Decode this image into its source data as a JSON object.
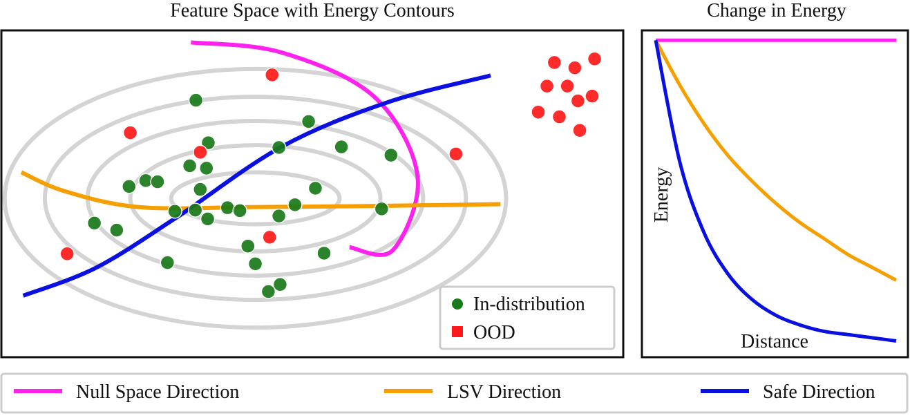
{
  "colors": {
    "in_distribution": "#1a7a1a",
    "ood": "#ff1a1a",
    "null_space": "#ff22ee",
    "lsv": "#f5a000",
    "safe": "#0a10e0",
    "contour": "#d4d4d4",
    "frame": "#111111"
  },
  "legend": {
    "in_distribution": "In-distribution",
    "ood": "OOD",
    "null_space": "Null Space Direction",
    "lsv": "LSV Direction",
    "safe": "Safe Direction"
  },
  "chart_data": [
    {
      "type": "scatter",
      "title": "Feature Space with Energy Contours",
      "xlabel": "",
      "ylabel": "",
      "xlim": [
        0,
        10
      ],
      "ylim": [
        0,
        5.5
      ],
      "grid": false,
      "legend_position": "bottom-right",
      "contours": {
        "center": [
          4.08,
          2.68
        ],
        "semi_axes": [
          [
            1.36,
            0.44
          ],
          [
            2.02,
            0.9
          ],
          [
            2.71,
            1.31
          ],
          [
            3.4,
            1.72
          ],
          [
            4.05,
            2.19
          ]
        ]
      },
      "series": [
        {
          "name": "In-distribution",
          "marker": "circle",
          "points": [
            [
              3.12,
              4.34
            ],
            [
              4.94,
              3.98
            ],
            [
              3.32,
              3.62
            ],
            [
              4.46,
              3.54
            ],
            [
              5.47,
              3.55
            ],
            [
              6.27,
              3.41
            ],
            [
              3.02,
              3.23
            ],
            [
              3.29,
              3.19
            ],
            [
              2.31,
              2.98
            ],
            [
              2.5,
              2.96
            ],
            [
              2.04,
              2.88
            ],
            [
              3.19,
              2.83
            ],
            [
              5.05,
              2.85
            ],
            [
              4.72,
              2.57
            ],
            [
              6.12,
              2.5
            ],
            [
              2.78,
              2.46
            ],
            [
              3.11,
              2.48
            ],
            [
              3.63,
              2.52
            ],
            [
              3.83,
              2.47
            ],
            [
              3.31,
              2.33
            ],
            [
              4.46,
              2.38
            ],
            [
              1.48,
              2.26
            ],
            [
              1.84,
              2.14
            ],
            [
              3.96,
              1.87
            ],
            [
              5.19,
              1.75
            ],
            [
              2.66,
              1.59
            ],
            [
              4.08,
              1.57
            ],
            [
              4.48,
              1.22
            ],
            [
              4.29,
              1.1
            ]
          ]
        },
        {
          "name": "OOD",
          "marker": "circle",
          "points": [
            [
              4.35,
              4.77
            ],
            [
              2.06,
              3.79
            ],
            [
              3.19,
              3.46
            ],
            [
              7.32,
              3.43
            ],
            [
              4.31,
              2.02
            ],
            [
              1.04,
              1.74
            ],
            [
              8.91,
              4.98
            ],
            [
              9.56,
              5.04
            ],
            [
              9.24,
              4.89
            ],
            [
              8.79,
              4.58
            ],
            [
              9.12,
              4.58
            ],
            [
              9.52,
              4.41
            ],
            [
              9.29,
              4.33
            ],
            [
              8.65,
              4.14
            ],
            [
              8.99,
              4.06
            ],
            [
              9.32,
              3.83
            ]
          ]
        }
      ],
      "directions": [
        {
          "name": "Null Space Direction",
          "points": [
            [
              3.04,
              5.32
            ],
            [
              4.5,
              5.15
            ],
            [
              6.0,
              4.4
            ],
            [
              6.7,
              3.05
            ],
            [
              6.3,
              1.8
            ],
            [
              5.6,
              1.85
            ]
          ]
        },
        {
          "name": "LSV Direction",
          "points": [
            [
              0.3,
              3.12
            ],
            [
              1.0,
              2.8
            ],
            [
              2.2,
              2.53
            ],
            [
              4.0,
              2.53
            ],
            [
              6.0,
              2.55
            ],
            [
              8.04,
              2.58
            ]
          ]
        },
        {
          "name": "Safe Direction",
          "points": [
            [
              0.33,
              1.03
            ],
            [
              1.5,
              1.5
            ],
            [
              2.8,
              2.35
            ],
            [
              4.5,
              3.55
            ],
            [
              6.2,
              4.3
            ],
            [
              7.88,
              4.76
            ]
          ]
        }
      ]
    },
    {
      "type": "line",
      "title": "Change in Energy",
      "xlabel": "Distance",
      "ylabel": "Energy",
      "xlim": [
        0,
        1
      ],
      "ylim": [
        0,
        1
      ],
      "grid": false,
      "series": [
        {
          "name": "Null Space Direction",
          "x": [
            0,
            0.1,
            0.2,
            0.3,
            0.4,
            0.5,
            0.6,
            0.7,
            0.8,
            0.9,
            1.0
          ],
          "y": [
            0.98,
            0.98,
            0.98,
            0.98,
            0.98,
            0.98,
            0.98,
            0.98,
            0.98,
            0.98,
            0.98
          ]
        },
        {
          "name": "LSV Direction",
          "x": [
            0,
            0.1,
            0.2,
            0.3,
            0.4,
            0.5,
            0.6,
            0.7,
            0.8,
            0.9,
            1.0
          ],
          "y": [
            0.98,
            0.84,
            0.72,
            0.62,
            0.54,
            0.47,
            0.41,
            0.36,
            0.31,
            0.27,
            0.23
          ]
        },
        {
          "name": "Safe Direction",
          "x": [
            0,
            0.1,
            0.2,
            0.3,
            0.4,
            0.5,
            0.6,
            0.7,
            0.8,
            0.9,
            1.0
          ],
          "y": [
            0.98,
            0.6,
            0.38,
            0.25,
            0.17,
            0.12,
            0.09,
            0.07,
            0.06,
            0.05,
            0.04
          ]
        }
      ]
    }
  ]
}
